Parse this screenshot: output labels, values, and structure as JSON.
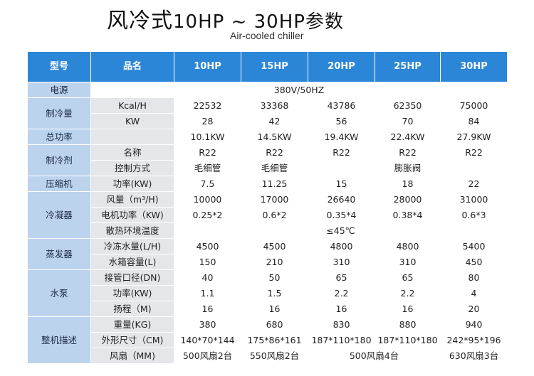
{
  "header": {
    "title_cn": "风冷式",
    "title_range": "10HP ~ 30HP参数",
    "subtitle": "Air-cooled chiller"
  },
  "table": {
    "col_headers": [
      "型号",
      "品名",
      "10HP",
      "15HP",
      "20HP",
      "25HP",
      "30HP"
    ],
    "power_source": {
      "cat": "电源",
      "value": "380V/50HZ"
    },
    "cooling": {
      "cat": "制冷量",
      "rows": [
        {
          "sub": "Kcal/H",
          "values": [
            "22532",
            "33368",
            "43786",
            "62350",
            "75000"
          ]
        },
        {
          "sub": "KW",
          "values": [
            "28",
            "42",
            "56",
            "70",
            "84"
          ]
        }
      ]
    },
    "total_power": {
      "cat": "总功率",
      "values": [
        "10.1KW",
        "14.5KW",
        "19.4KW",
        "22.4KW",
        "27.9KW"
      ]
    },
    "refrigerant": {
      "cat": "制冷剂",
      "name_row": {
        "sub": "名称",
        "values": [
          "R22",
          "R22",
          "R22",
          "R22",
          "R22"
        ]
      },
      "control_row": {
        "sub": "控制方式",
        "capillary_a": "毛细管",
        "capillary_b": "毛细管",
        "expansion": "膨胀阀"
      }
    },
    "compressor": {
      "cat": "压缩机",
      "sub": "功率(KW)",
      "values": [
        "7.5",
        "11.25",
        "15",
        "18",
        "22"
      ]
    },
    "condenser": {
      "cat": "冷凝器",
      "air_row": {
        "sub": "风量（m³/H)",
        "values": [
          "10000",
          "17000",
          "26640",
          "28000",
          "31000"
        ]
      },
      "motor_row": {
        "sub": "电机功率（KW)",
        "values": [
          "0.25*2",
          "0.6*2",
          "0.35*4",
          "0.38*4",
          "0.6*3"
        ]
      },
      "env_row": {
        "sub": "散热环境温度",
        "value": "≤45℃"
      }
    },
    "evaporator": {
      "cat": "蒸发器",
      "rows": [
        {
          "sub": "冷冻水量(L/H)",
          "values": [
            "4500",
            "4500",
            "4800",
            "4800",
            "5400"
          ]
        },
        {
          "sub": "水箱容量(L)",
          "values": [
            "150",
            "210",
            "310",
            "310",
            "450"
          ]
        }
      ]
    },
    "pump": {
      "cat": "水泵",
      "rows": [
        {
          "sub": "接管口径(DN)",
          "values": [
            "40",
            "50",
            "65",
            "65",
            "80"
          ]
        },
        {
          "sub": "功率(KW)",
          "values": [
            "1.1",
            "1.5",
            "2.2",
            "2.2",
            "4"
          ]
        },
        {
          "sub": "扬程（M)",
          "values": [
            "16",
            "16",
            "16",
            "16",
            "20"
          ]
        }
      ]
    },
    "machine": {
      "cat": "整机描述",
      "weight_row": {
        "sub": "重量(KG)",
        "values": [
          "380",
          "680",
          "830",
          "880",
          "940"
        ]
      },
      "size_row": {
        "sub": "外形尺寸（CM)",
        "values": [
          "140*70*144",
          "175*86*161",
          "187*110*180",
          "187*110*180",
          "242*95*196"
        ]
      },
      "fan_row": {
        "sub": "风扇（MM)",
        "v10": "500风扇2台",
        "v15": "550风扇2台",
        "v20_25": "500风扇4台",
        "v30": "630风扇3台"
      }
    }
  }
}
